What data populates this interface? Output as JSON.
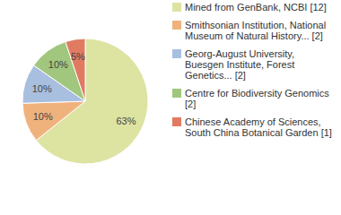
{
  "chart_data": {
    "type": "pie",
    "categories": [
      "Mined from GenBank, NCBI [12]",
      "Smithsonian Institution, National Museum of Natural History... [2]",
      "Georg-August University, Buesgen Institute, Forest Genetics... [2]",
      "Centre for Biodiversity Genomics [2]",
      "Chinese Academy of Sciences, South China Botanical Garden [1]"
    ],
    "values": [
      63,
      10,
      10,
      10,
      5
    ],
    "value_labels": [
      "63%",
      "10%",
      "10%",
      "10%",
      "5%"
    ],
    "colors": [
      "#dde3a1",
      "#f0b27d",
      "#a9bfe0",
      "#a1c67e",
      "#e07b62"
    ],
    "data_labels": true,
    "legend": "right"
  }
}
